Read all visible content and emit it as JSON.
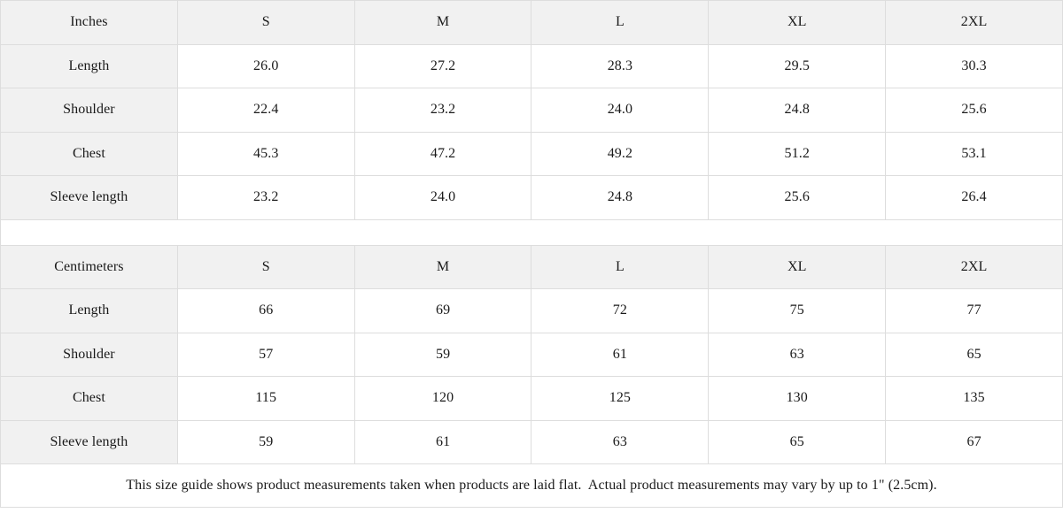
{
  "chart_data": [
    {
      "type": "table",
      "title": "Inches",
      "columns": [
        "Inches",
        "S",
        "M",
        "L",
        "XL",
        "2XL"
      ],
      "rows": [
        [
          "Length",
          "26.0",
          "27.2",
          "28.3",
          "29.5",
          "30.3"
        ],
        [
          "Shoulder",
          "22.4",
          "23.2",
          "24.0",
          "24.8",
          "25.6"
        ],
        [
          "Chest",
          "45.3",
          "47.2",
          "49.2",
          "51.2",
          "53.1"
        ],
        [
          "Sleeve length",
          "23.2",
          "24.0",
          "24.8",
          "25.6",
          "26.4"
        ]
      ]
    },
    {
      "type": "table",
      "title": "Centimeters",
      "columns": [
        "Centimeters",
        "S",
        "M",
        "L",
        "XL",
        "2XL"
      ],
      "rows": [
        [
          "Length",
          "66",
          "69",
          "72",
          "75",
          "77"
        ],
        [
          "Shoulder",
          "57",
          "59",
          "61",
          "63",
          "65"
        ],
        [
          "Chest",
          "115",
          "120",
          "125",
          "130",
          "135"
        ],
        [
          "Sleeve length",
          "59",
          "61",
          "63",
          "65",
          "67"
        ]
      ]
    }
  ],
  "footer_note": "This size guide shows product measurements taken when products are laid flat.  Actual product measurements may vary by up to 1\" (2.5cm).",
  "colors": {
    "header_bg": "#f1f1f1",
    "cell_bg": "#ffffff",
    "border": "#dddddd",
    "text": "#1a1a1a"
  }
}
